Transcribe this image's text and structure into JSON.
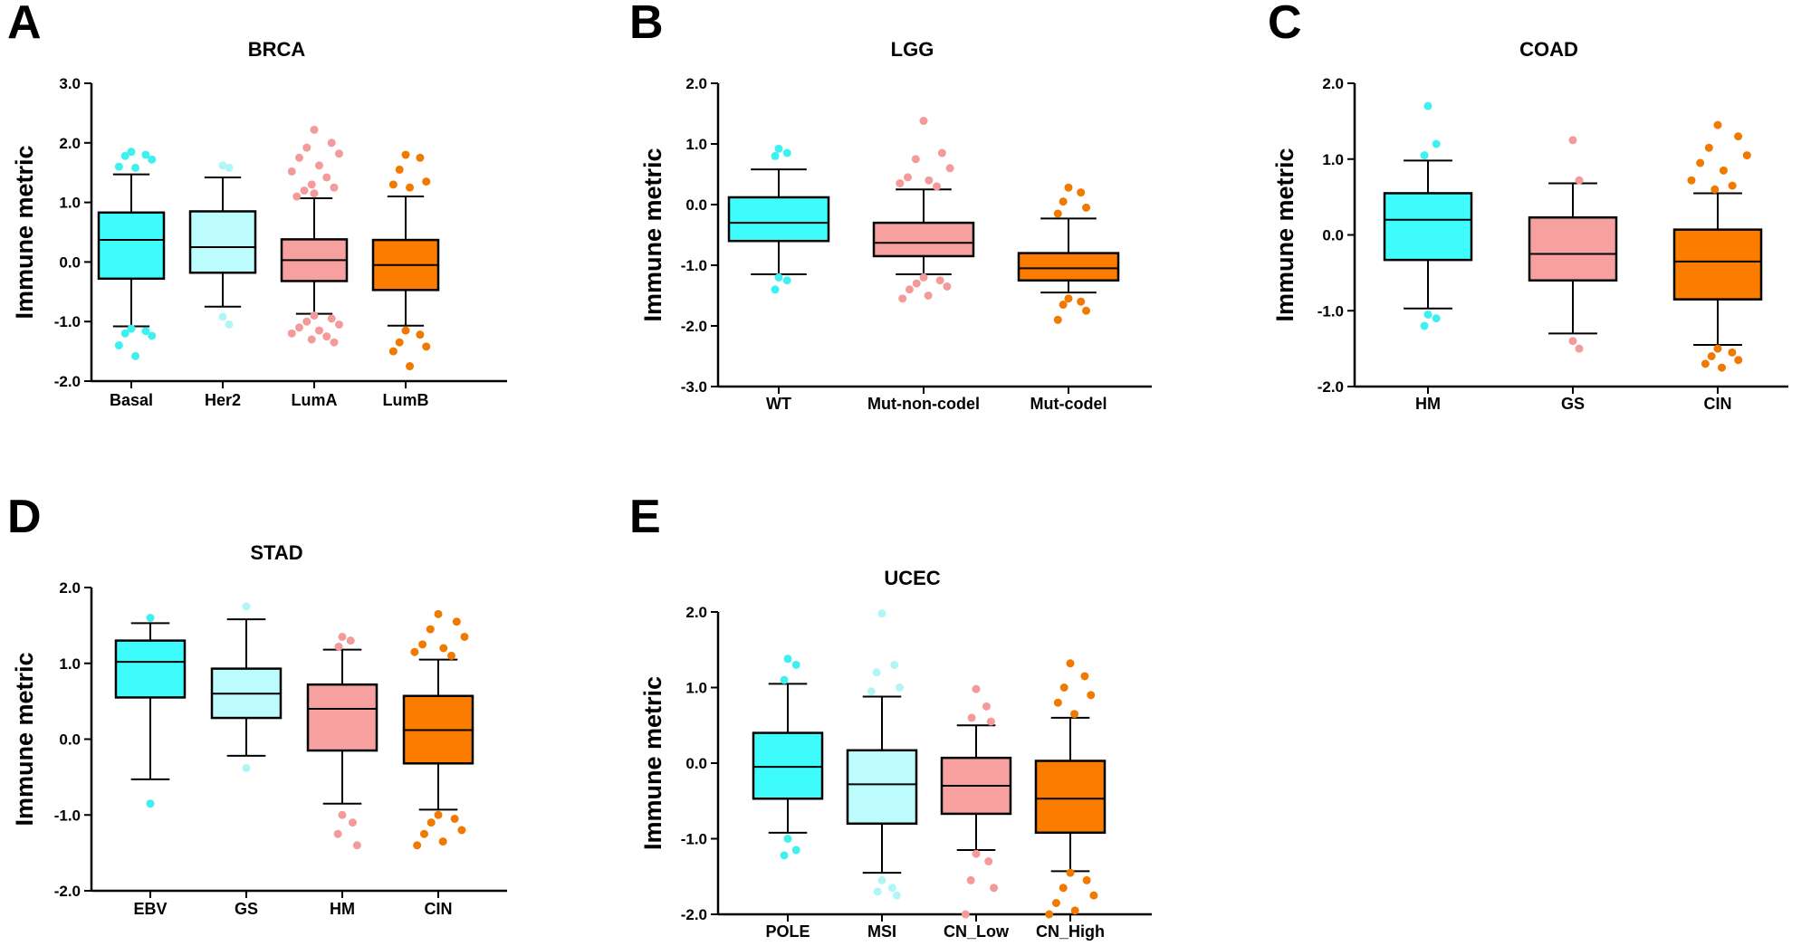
{
  "colors": {
    "cyan": "#3ffcfc",
    "light_cyan": "#bdfcfc",
    "pink": "#f7a0a0",
    "orange": "#fc7c00",
    "cyan_dot": "#3ef0f0",
    "light_cyan_dot": "#b0f6f6",
    "pink_dot": "#f39a9a",
    "orange_dot": "#f07a00"
  },
  "chart_data": [
    {
      "letter": "A",
      "type": "box",
      "title": "BRCA",
      "ylabel": "Immune metric",
      "ylim": [
        -2.0,
        3.0
      ],
      "yticks": [
        "3.0",
        "2.0",
        "1.0",
        "0.0",
        "-1.0",
        "-2.0"
      ],
      "ytick_values": [
        3.0,
        2.0,
        1.0,
        0.0,
        -1.0,
        -2.0
      ],
      "categories": [
        "Basal",
        "Her2",
        "LumA",
        "LumB"
      ],
      "series": [
        {
          "q1": -0.28,
          "median": 0.37,
          "q3": 0.83,
          "whisker_low": -1.08,
          "whisker_high": 1.47,
          "color": "cyan",
          "outliers": [
            1.85,
            1.8,
            1.78,
            1.72,
            1.6,
            1.58,
            -1.12,
            -1.16,
            -1.2,
            -1.24,
            -1.4,
            -1.58
          ]
        },
        {
          "q1": -0.18,
          "median": 0.25,
          "q3": 0.85,
          "whisker_low": -0.75,
          "whisker_high": 1.42,
          "color": "light_cyan",
          "outliers": [
            1.62,
            1.58,
            -0.92,
            -1.05
          ]
        },
        {
          "q1": -0.32,
          "median": 0.03,
          "q3": 0.38,
          "whisker_low": -0.87,
          "whisker_high": 1.07,
          "color": "pink",
          "outliers": [
            2.22,
            2.0,
            1.92,
            1.82,
            1.75,
            1.62,
            1.52,
            1.42,
            1.3,
            1.25,
            1.2,
            1.15,
            1.1,
            -0.9,
            -0.95,
            -1.0,
            -1.05,
            -1.1,
            -1.15,
            -1.2,
            -1.25,
            -1.3,
            -1.35
          ]
        },
        {
          "q1": -0.47,
          "median": -0.05,
          "q3": 0.37,
          "whisker_low": -1.07,
          "whisker_high": 1.1,
          "color": "orange",
          "outliers": [
            1.8,
            1.75,
            1.55,
            1.35,
            1.3,
            1.25,
            -1.15,
            -1.22,
            -1.35,
            -1.42,
            -1.5,
            -1.75
          ]
        }
      ]
    },
    {
      "letter": "B",
      "type": "box",
      "title": "LGG",
      "ylabel": "Immune metric",
      "ylim": [
        -3.0,
        2.0
      ],
      "yticks": [
        "2.0",
        "1.0",
        "0.0",
        "-1.0",
        "-2.0",
        "-3.0"
      ],
      "ytick_values": [
        2.0,
        1.0,
        0.0,
        -1.0,
        -2.0,
        -3.0
      ],
      "categories": [
        "WT",
        "Mut-non-codel",
        "Mut-codel"
      ],
      "series": [
        {
          "q1": -0.6,
          "median": -0.3,
          "q3": 0.12,
          "whisker_low": -1.15,
          "whisker_high": 0.58,
          "color": "cyan",
          "outliers": [
            0.92,
            0.85,
            0.8,
            -1.2,
            -1.25,
            -1.4
          ]
        },
        {
          "q1": -0.85,
          "median": -0.63,
          "q3": -0.3,
          "whisker_low": -1.15,
          "whisker_high": 0.25,
          "color": "pink",
          "outliers": [
            1.38,
            0.85,
            0.75,
            0.6,
            0.45,
            0.4,
            0.35,
            0.3,
            -1.2,
            -1.25,
            -1.3,
            -1.35,
            -1.4,
            -1.5,
            -1.55
          ]
        },
        {
          "q1": -1.25,
          "median": -1.05,
          "q3": -0.8,
          "whisker_low": -1.45,
          "whisker_high": -0.23,
          "color": "orange",
          "outliers": [
            0.28,
            0.2,
            0.05,
            -0.05,
            -0.15,
            -1.55,
            -1.6,
            -1.65,
            -1.75,
            -1.9
          ]
        }
      ]
    },
    {
      "letter": "C",
      "type": "box",
      "title": "COAD",
      "ylabel": "Immune metric",
      "ylim": [
        -2.0,
        2.0
      ],
      "yticks": [
        "2.0",
        "1.0",
        "0.0",
        "-1.0",
        "-2.0"
      ],
      "ytick_values": [
        2.0,
        1.0,
        0.0,
        -1.0,
        -2.0
      ],
      "categories": [
        "HM",
        "GS",
        "CIN"
      ],
      "series": [
        {
          "q1": -0.33,
          "median": 0.2,
          "q3": 0.55,
          "whisker_low": -0.97,
          "whisker_high": 0.98,
          "color": "cyan",
          "outliers": [
            1.7,
            1.2,
            1.05,
            -1.05,
            -1.1,
            -1.2
          ]
        },
        {
          "q1": -0.6,
          "median": -0.25,
          "q3": 0.23,
          "whisker_low": -1.3,
          "whisker_high": 0.68,
          "color": "pink",
          "outliers": [
            1.25,
            0.72,
            -1.4,
            -1.5
          ]
        },
        {
          "q1": -0.85,
          "median": -0.35,
          "q3": 0.07,
          "whisker_low": -1.45,
          "whisker_high": 0.55,
          "color": "orange",
          "outliers": [
            1.45,
            1.3,
            1.15,
            1.05,
            0.95,
            0.85,
            0.72,
            0.65,
            0.6,
            -1.5,
            -1.55,
            -1.6,
            -1.65,
            -1.7,
            -1.75
          ]
        }
      ]
    },
    {
      "letter": "D",
      "type": "box",
      "title": "STAD",
      "ylabel": "Immune metric",
      "ylim": [
        -2.0,
        2.0
      ],
      "yticks": [
        "2.0",
        "1.0",
        "0.0",
        "-1.0",
        "-2.0"
      ],
      "ytick_values": [
        2.0,
        1.0,
        0.0,
        -1.0,
        -2.0
      ],
      "categories": [
        "EBV",
        "GS",
        "HM",
        "CIN"
      ],
      "series": [
        {
          "q1": 0.55,
          "median": 1.02,
          "q3": 1.3,
          "whisker_low": -0.53,
          "whisker_high": 1.53,
          "color": "cyan",
          "outliers": [
            1.6,
            -0.85
          ]
        },
        {
          "q1": 0.28,
          "median": 0.6,
          "q3": 0.93,
          "whisker_low": -0.22,
          "whisker_high": 1.58,
          "color": "light_cyan",
          "outliers": [
            1.75,
            -0.38
          ]
        },
        {
          "q1": -0.15,
          "median": 0.4,
          "q3": 0.72,
          "whisker_low": -0.85,
          "whisker_high": 1.18,
          "color": "pink",
          "outliers": [
            1.35,
            1.3,
            1.22,
            -1.0,
            -1.1,
            -1.25,
            -1.4
          ]
        },
        {
          "q1": -0.32,
          "median": 0.12,
          "q3": 0.57,
          "whisker_low": -0.93,
          "whisker_high": 1.05,
          "color": "orange",
          "outliers": [
            1.65,
            1.55,
            1.45,
            1.35,
            1.25,
            1.2,
            1.15,
            1.1,
            -1.0,
            -1.05,
            -1.1,
            -1.2,
            -1.25,
            -1.35,
            -1.4
          ]
        }
      ]
    },
    {
      "letter": "E",
      "type": "box",
      "title": "UCEC",
      "ylabel": "Immune metric",
      "ylim": [
        -2.0,
        2.0
      ],
      "yticks": [
        "2.0",
        "1.0",
        "0.0",
        "-1.0",
        "-2.0"
      ],
      "ytick_values": [
        2.0,
        1.0,
        0.0,
        -1.0,
        -2.0
      ],
      "categories": [
        "POLE",
        "MSI",
        "CN_Low",
        "CN_High"
      ],
      "series": [
        {
          "q1": -0.47,
          "median": -0.05,
          "q3": 0.4,
          "whisker_low": -0.92,
          "whisker_high": 1.05,
          "color": "cyan",
          "outliers": [
            1.38,
            1.3,
            1.1,
            -0.9,
            -1.0,
            -1.15,
            -1.22
          ]
        },
        {
          "q1": -0.8,
          "median": -0.28,
          "q3": 0.17,
          "whisker_low": -1.45,
          "whisker_high": 0.88,
          "color": "light_cyan",
          "outliers": [
            1.98,
            1.3,
            1.2,
            1.0,
            0.95,
            -1.55,
            -1.65,
            -1.7,
            -1.75
          ]
        },
        {
          "q1": -0.67,
          "median": -0.3,
          "q3": 0.07,
          "whisker_low": -1.15,
          "whisker_high": 0.5,
          "color": "pink",
          "outliers": [
            0.98,
            0.75,
            0.6,
            0.55,
            -1.15,
            -1.2,
            -1.3,
            -1.55,
            -1.65,
            -2.0
          ]
        },
        {
          "q1": -0.92,
          "median": -0.47,
          "q3": 0.03,
          "whisker_low": -1.43,
          "whisker_high": 0.6,
          "color": "orange",
          "outliers": [
            1.32,
            1.15,
            1.0,
            0.9,
            0.8,
            0.65,
            -1.45,
            -1.55,
            -1.65,
            -1.75,
            -1.85,
            -1.95,
            -2.0
          ]
        }
      ]
    }
  ]
}
